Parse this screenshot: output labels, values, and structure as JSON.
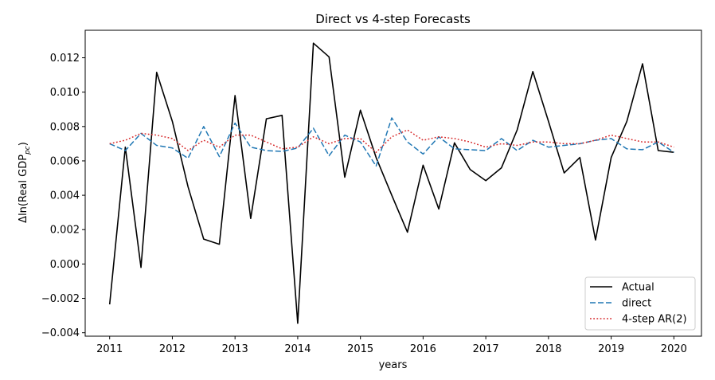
{
  "chart_data": {
    "type": "line",
    "title": "Direct vs 4-step Forecasts",
    "xlabel": "years",
    "ylabel_main": "Δln(Real GDP",
    "ylabel_sub": "pc",
    "ylabel_close": ")",
    "xlim": [
      2010.61,
      2020.44
    ],
    "ylim": [
      -0.0042,
      0.0136
    ],
    "x_ticks": [
      2011,
      2012,
      2013,
      2014,
      2015,
      2016,
      2017,
      2018,
      2019,
      2020
    ],
    "x_tick_labels": [
      "2011",
      "2012",
      "2013",
      "2014",
      "2015",
      "2016",
      "2017",
      "2018",
      "2019",
      "2020"
    ],
    "y_ticks": [
      -0.004,
      -0.002,
      0.0,
      0.002,
      0.004,
      0.006,
      0.008,
      0.01,
      0.012
    ],
    "y_tick_labels": [
      "−0.004",
      "−0.002",
      "0.000",
      "0.002",
      "0.004",
      "0.006",
      "0.008",
      "0.010",
      "0.012"
    ],
    "legend_position": "lower right",
    "x": [
      2011.0,
      2011.25,
      2011.5,
      2011.75,
      2012.0,
      2012.25,
      2012.5,
      2012.75,
      2013.0,
      2013.25,
      2013.5,
      2013.75,
      2014.0,
      2014.25,
      2014.5,
      2014.75,
      2015.0,
      2015.25,
      2015.5,
      2015.75,
      2016.0,
      2016.25,
      2016.5,
      2016.75,
      2017.0,
      2017.25,
      2017.5,
      2017.75,
      2018.0,
      2018.25,
      2018.5,
      2018.75,
      2019.0,
      2019.25,
      2019.5,
      2019.75,
      2020.0
    ],
    "series": [
      {
        "name": "Actual",
        "color": "#000000",
        "dash": "solid",
        "values": [
          -0.00235,
          0.0068,
          -0.0002,
          0.01115,
          0.0083,
          0.0045,
          0.00145,
          0.00115,
          0.0098,
          0.00265,
          0.00845,
          0.00865,
          -0.00345,
          0.01285,
          0.01205,
          0.00505,
          0.00895,
          0.0062,
          0.004,
          0.00185,
          0.00575,
          0.0032,
          0.00705,
          0.0055,
          0.00485,
          0.0056,
          0.0078,
          0.0112,
          0.0083,
          0.0053,
          0.0062,
          0.0014,
          0.0062,
          0.0083,
          0.01165,
          0.0066,
          0.0065
        ]
      },
      {
        "name": "direct",
        "color": "#1f77b4",
        "dash": "dashed",
        "values": [
          0.007,
          0.0066,
          0.0076,
          0.0069,
          0.00675,
          0.00615,
          0.008,
          0.00625,
          0.0082,
          0.0068,
          0.0066,
          0.00655,
          0.00675,
          0.0079,
          0.0063,
          0.0075,
          0.0071,
          0.0057,
          0.0085,
          0.0071,
          0.0064,
          0.0074,
          0.0067,
          0.00665,
          0.0066,
          0.0073,
          0.0066,
          0.0072,
          0.0068,
          0.0069,
          0.007,
          0.0072,
          0.0073,
          0.0067,
          0.00665,
          0.0071,
          0.0065
        ]
      },
      {
        "name": "4-step AR(2)",
        "color": "#d62728",
        "dash": "dotted",
        "values": [
          0.007,
          0.0072,
          0.0076,
          0.0075,
          0.0073,
          0.0066,
          0.0072,
          0.0068,
          0.0075,
          0.0075,
          0.0071,
          0.0067,
          0.0068,
          0.0074,
          0.007,
          0.0073,
          0.0073,
          0.0065,
          0.0074,
          0.0078,
          0.0072,
          0.0074,
          0.0073,
          0.0071,
          0.0068,
          0.007,
          0.0069,
          0.0071,
          0.0071,
          0.007,
          0.007,
          0.0072,
          0.0075,
          0.0073,
          0.0071,
          0.0071,
          0.0068
        ]
      }
    ]
  }
}
